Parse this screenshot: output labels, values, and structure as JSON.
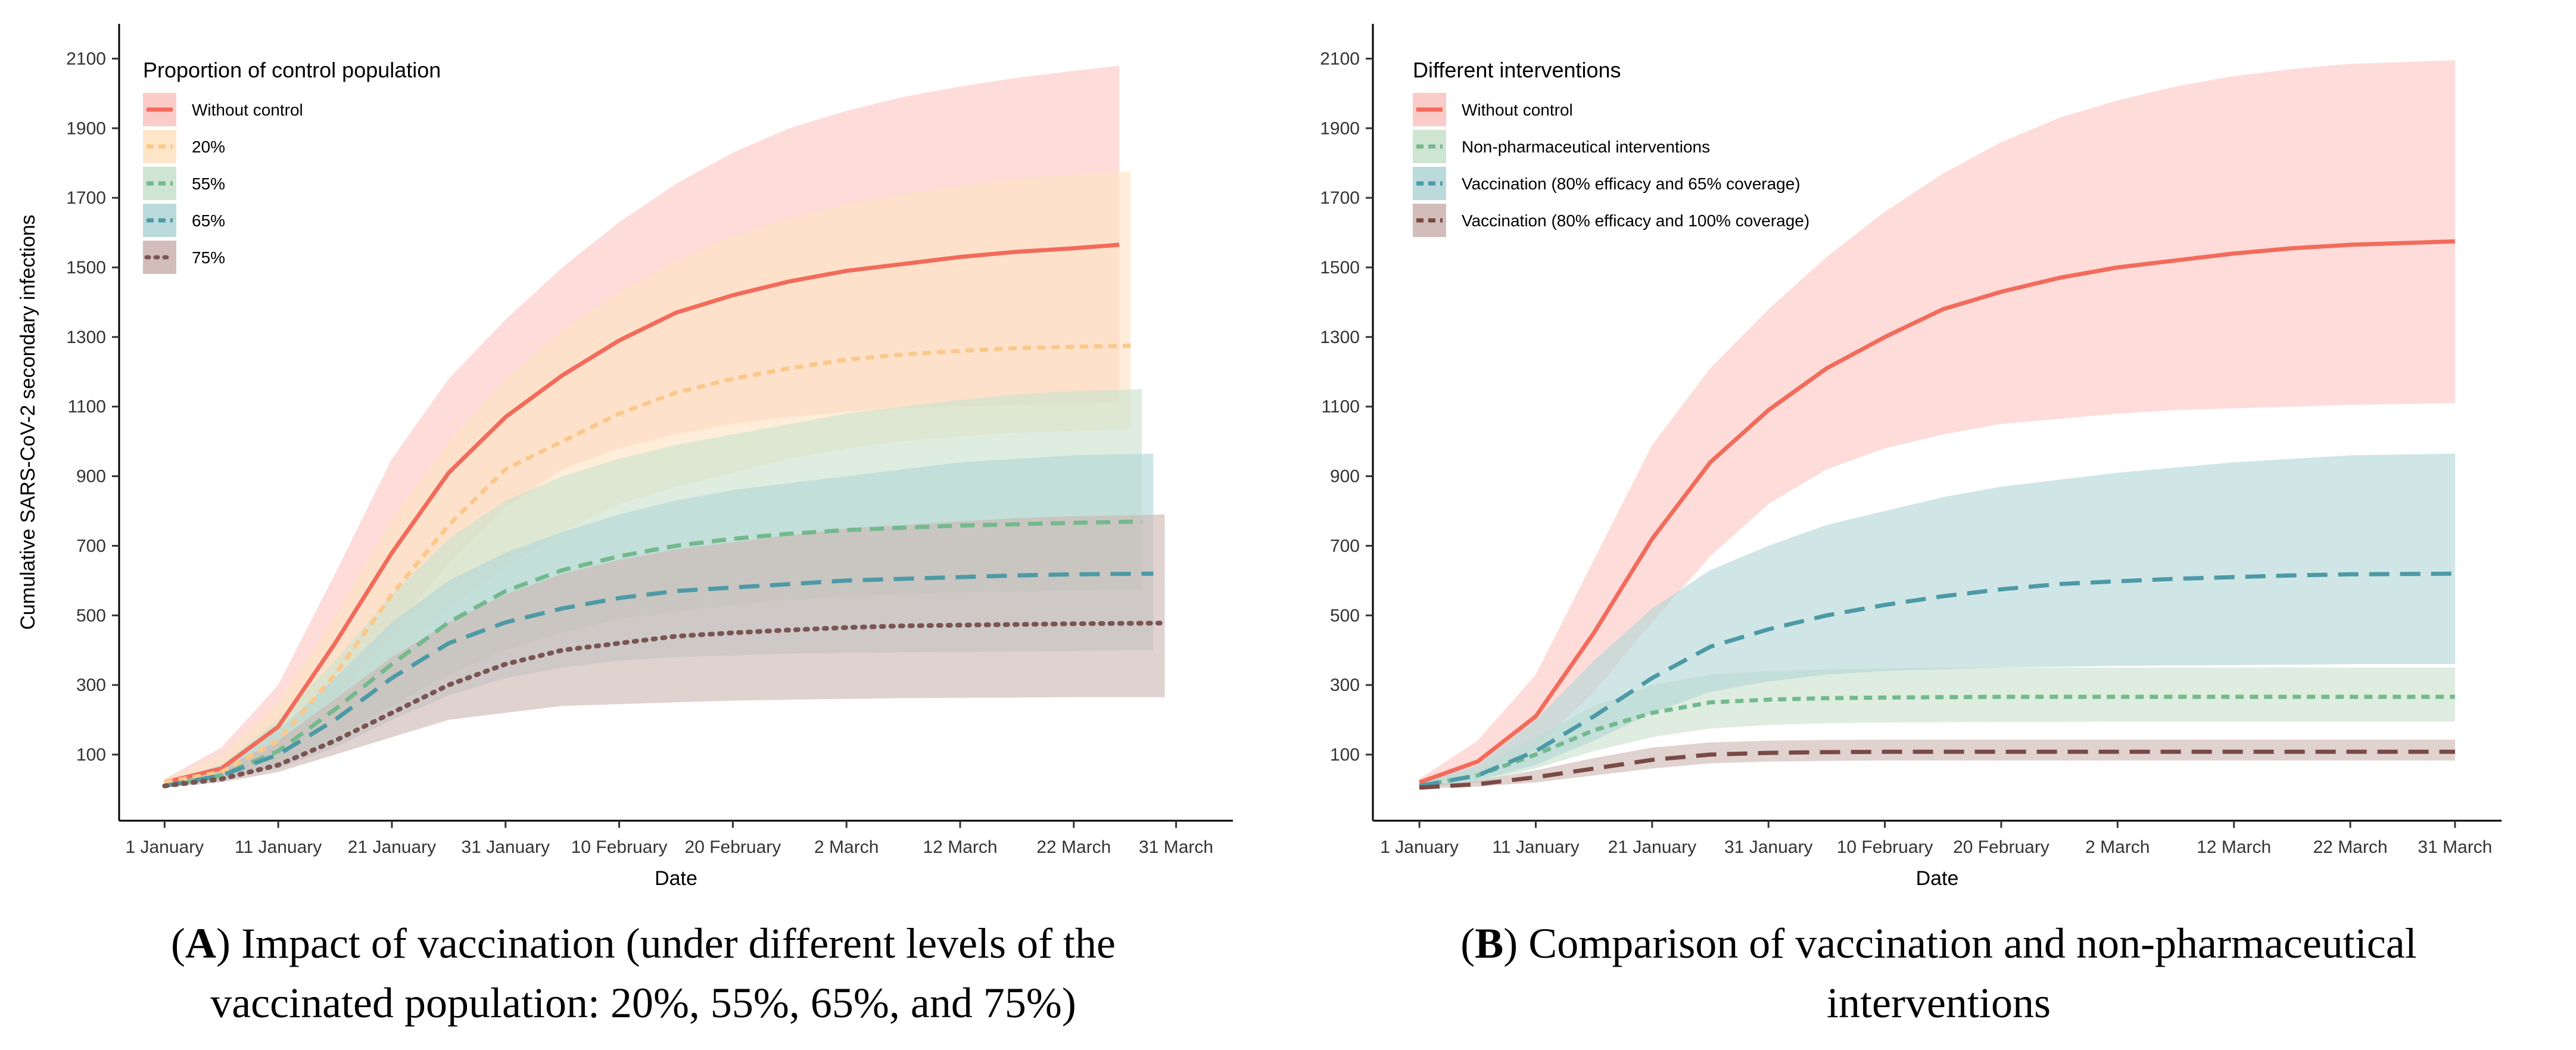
{
  "chart_data": [
    {
      "type": "line",
      "panel": "A",
      "caption_lines": [
        {
          "prefix": "(",
          "bold": "A",
          "rest": ") Impact of vaccination (under different levels of the"
        },
        {
          "prefix": "",
          "bold": "",
          "rest": "vaccinated population: 20%, 55%, 65%, and 75%)"
        }
      ],
      "xlabel": "Date",
      "ylabel": "Cumulative SARS-CoV-2 secondary infections",
      "xlim": [
        -4,
        94
      ],
      "ylim": [
        -90,
        2200
      ],
      "xticks": [
        0,
        10,
        20,
        30,
        40,
        50,
        60,
        70,
        80,
        89
      ],
      "xtick_labels": [
        "1 January",
        "11 January",
        "21 January",
        "31 January",
        "10 February",
        "20 February",
        "2 March",
        "12 March",
        "22 March",
        "31 March"
      ],
      "yticks": [
        100,
        300,
        500,
        700,
        900,
        1100,
        1300,
        1500,
        1700,
        1900,
        2100
      ],
      "ytick_labels": [
        "100",
        "300",
        "500",
        "700",
        "900",
        "1100",
        "1300",
        "1500",
        "1700",
        "1900",
        "2100"
      ],
      "legend_title": "Proportion of control population",
      "legend_position": "top-left",
      "series": [
        {
          "name": "Without control",
          "color": "#f26b5b",
          "band_color": "#fbc7c1",
          "dash": "solid",
          "end_x": 84,
          "x": [
            0,
            5,
            10,
            15,
            20,
            25,
            30,
            35,
            40,
            45,
            50,
            55,
            60,
            65,
            70,
            75,
            80,
            84
          ],
          "values": [
            20,
            60,
            180,
            420,
            680,
            910,
            1070,
            1190,
            1290,
            1370,
            1420,
            1460,
            1490,
            1510,
            1530,
            1545,
            1555,
            1565
          ],
          "lower": [
            10,
            30,
            100,
            260,
            450,
            650,
            810,
            920,
            980,
            1020,
            1050,
            1070,
            1085,
            1095,
            1100,
            1105,
            1108,
            1110
          ],
          "upper": [
            30,
            120,
            300,
            620,
            950,
            1180,
            1350,
            1500,
            1630,
            1740,
            1830,
            1900,
            1950,
            1990,
            2020,
            2045,
            2065,
            2080
          ]
        },
        {
          "name": "20%",
          "color": "#fbc88a",
          "band_color": "#fde3c2",
          "dash": "short",
          "end_x": 85,
          "x": [
            0,
            5,
            10,
            15,
            20,
            25,
            30,
            35,
            40,
            45,
            50,
            55,
            60,
            65,
            70,
            75,
            80,
            85
          ],
          "values": [
            20,
            50,
            140,
            330,
            560,
            760,
            920,
            1000,
            1080,
            1140,
            1180,
            1210,
            1235,
            1250,
            1260,
            1268,
            1272,
            1275
          ],
          "lower": [
            10,
            30,
            80,
            200,
            370,
            520,
            640,
            740,
            820,
            870,
            910,
            950,
            980,
            1000,
            1015,
            1025,
            1030,
            1035
          ],
          "upper": [
            30,
            100,
            250,
            500,
            780,
            1000,
            1180,
            1320,
            1430,
            1520,
            1590,
            1640,
            1680,
            1710,
            1735,
            1755,
            1768,
            1775
          ]
        },
        {
          "name": "55%",
          "color": "#74b98e",
          "band_color": "#c9e2cd",
          "dash": "medium",
          "end_x": 86,
          "x": [
            0,
            5,
            10,
            15,
            20,
            25,
            30,
            35,
            40,
            45,
            50,
            55,
            60,
            65,
            70,
            75,
            80,
            86
          ],
          "values": [
            10,
            40,
            110,
            230,
            360,
            480,
            570,
            630,
            670,
            700,
            720,
            735,
            745,
            752,
            758,
            762,
            766,
            770
          ],
          "lower": [
            5,
            25,
            70,
            150,
            240,
            330,
            400,
            450,
            490,
            510,
            530,
            545,
            555,
            560,
            565,
            570,
            572,
            575
          ],
          "upper": [
            20,
            70,
            200,
            370,
            560,
            720,
            830,
            900,
            950,
            990,
            1020,
            1050,
            1080,
            1100,
            1120,
            1135,
            1145,
            1150
          ]
        },
        {
          "name": "65%",
          "color": "#4d9aa6",
          "band_color": "#b3d6d7",
          "dash": "long",
          "end_x": 87,
          "x": [
            0,
            5,
            10,
            15,
            20,
            25,
            30,
            35,
            40,
            45,
            50,
            55,
            60,
            65,
            70,
            75,
            80,
            87
          ],
          "values": [
            10,
            40,
            100,
            200,
            320,
            420,
            480,
            520,
            550,
            570,
            580,
            590,
            600,
            605,
            610,
            615,
            618,
            620
          ],
          "lower": [
            5,
            25,
            60,
            120,
            200,
            270,
            320,
            350,
            370,
            380,
            385,
            390,
            392,
            394,
            395,
            396,
            398,
            400
          ],
          "upper": [
            20,
            70,
            170,
            320,
            480,
            600,
            680,
            740,
            790,
            830,
            860,
            880,
            900,
            920,
            940,
            950,
            960,
            965
          ]
        },
        {
          "name": "75%",
          "color": "#7a5553",
          "band_color": "#cdb6b2",
          "dash": "dotted",
          "end_x": 88,
          "x": [
            0,
            5,
            10,
            15,
            20,
            25,
            30,
            35,
            40,
            45,
            50,
            55,
            60,
            65,
            70,
            75,
            80,
            88
          ],
          "values": [
            10,
            30,
            70,
            140,
            220,
            300,
            360,
            400,
            420,
            440,
            450,
            458,
            465,
            470,
            472,
            474,
            476,
            478
          ],
          "lower": [
            5,
            20,
            50,
            100,
            150,
            200,
            220,
            240,
            245,
            250,
            255,
            258,
            260,
            262,
            263,
            264,
            265,
            265
          ],
          "upper": [
            20,
            60,
            140,
            260,
            380,
            480,
            560,
            620,
            660,
            690,
            710,
            730,
            750,
            760,
            770,
            780,
            785,
            790
          ]
        }
      ]
    },
    {
      "type": "line",
      "panel": "B",
      "caption_lines": [
        {
          "prefix": "(",
          "bold": "B",
          "rest": ") Comparison of vaccination and non-pharmaceutical"
        },
        {
          "prefix": "",
          "bold": "",
          "rest": "interventions"
        }
      ],
      "xlabel": "Date",
      "ylabel": "",
      "xlim": [
        -4,
        93
      ],
      "ylim": [
        -90,
        2200
      ],
      "xticks": [
        0,
        10,
        20,
        30,
        40,
        50,
        60,
        70,
        80,
        89
      ],
      "xtick_labels": [
        "1 January",
        "11 January",
        "21 January",
        "31 January",
        "10 February",
        "20 February",
        "2 March",
        "12 March",
        "22 March",
        "31 March"
      ],
      "yticks": [
        100,
        300,
        500,
        700,
        900,
        1100,
        1300,
        1500,
        1700,
        1900,
        2100
      ],
      "ytick_labels": [
        "100",
        "300",
        "500",
        "700",
        "900",
        "1100",
        "1300",
        "1500",
        "1700",
        "1900",
        "2100"
      ],
      "legend_title": "Different interventions",
      "legend_position": "top-left",
      "series": [
        {
          "name": "Without control",
          "color": "#f26b5b",
          "band_color": "#fbc7c1",
          "dash": "solid",
          "end_x": 89,
          "x": [
            0,
            5,
            10,
            15,
            20,
            25,
            30,
            35,
            40,
            45,
            50,
            55,
            60,
            65,
            70,
            75,
            80,
            89
          ],
          "values": [
            20,
            80,
            210,
            450,
            720,
            940,
            1090,
            1210,
            1300,
            1380,
            1430,
            1470,
            1500,
            1520,
            1540,
            1555,
            1565,
            1575
          ],
          "lower": [
            10,
            40,
            120,
            280,
            480,
            670,
            820,
            920,
            980,
            1020,
            1050,
            1065,
            1080,
            1090,
            1095,
            1100,
            1105,
            1110
          ],
          "upper": [
            30,
            140,
            330,
            660,
            990,
            1210,
            1380,
            1530,
            1660,
            1770,
            1860,
            1930,
            1980,
            2020,
            2050,
            2070,
            2085,
            2095
          ]
        },
        {
          "name": "Non-pharmaceutical interventions",
          "color": "#74b98e",
          "band_color": "#c9e2cd",
          "dash": "short",
          "end_x": 89,
          "x": [
            0,
            5,
            10,
            15,
            20,
            25,
            30,
            35,
            40,
            45,
            50,
            55,
            60,
            65,
            70,
            75,
            80,
            89
          ],
          "values": [
            10,
            40,
            100,
            170,
            220,
            250,
            258,
            262,
            264,
            265,
            266,
            266,
            266,
            266,
            266,
            266,
            266,
            266
          ],
          "lower": [
            5,
            20,
            60,
            110,
            150,
            175,
            185,
            190,
            192,
            193,
            194,
            194,
            195,
            195,
            195,
            195,
            195,
            195
          ],
          "upper": [
            20,
            60,
            150,
            240,
            300,
            330,
            340,
            345,
            348,
            350,
            350,
            350,
            350,
            350,
            350,
            350,
            350,
            350
          ]
        },
        {
          "name": "Vaccination (80% efficacy and 65% coverage)",
          "color": "#4d9aa6",
          "band_color": "#b3d6d7",
          "dash": "long",
          "end_x": 89,
          "x": [
            0,
            5,
            10,
            15,
            20,
            25,
            30,
            35,
            40,
            45,
            50,
            55,
            60,
            65,
            70,
            75,
            80,
            89
          ],
          "values": [
            10,
            40,
            110,
            210,
            320,
            410,
            460,
            500,
            530,
            555,
            575,
            590,
            598,
            605,
            610,
            615,
            618,
            620
          ],
          "lower": [
            5,
            25,
            70,
            140,
            220,
            280,
            310,
            330,
            340,
            345,
            350,
            352,
            355,
            356,
            357,
            358,
            360,
            360
          ],
          "upper": [
            20,
            70,
            200,
            370,
            520,
            630,
            700,
            760,
            800,
            840,
            870,
            890,
            910,
            925,
            940,
            950,
            960,
            965
          ]
        },
        {
          "name": "Vaccination (80% efficacy and 100% coverage)",
          "color": "#7a4a46",
          "band_color": "#cdb6b2",
          "dash": "long",
          "end_x": 89,
          "x": [
            0,
            5,
            10,
            15,
            20,
            25,
            30,
            35,
            40,
            45,
            50,
            55,
            60,
            65,
            70,
            75,
            80,
            89
          ],
          "values": [
            5,
            15,
            35,
            60,
            85,
            100,
            105,
            107,
            108,
            108,
            108,
            108,
            108,
            108,
            108,
            108,
            108,
            108
          ],
          "lower": [
            2,
            8,
            20,
            40,
            60,
            75,
            80,
            82,
            83,
            83,
            83,
            83,
            83,
            83,
            83,
            83,
            83,
            83
          ],
          "upper": [
            10,
            25,
            55,
            90,
            120,
            135,
            140,
            142,
            143,
            143,
            143,
            143,
            143,
            143,
            143,
            143,
            143,
            143
          ]
        }
      ]
    }
  ]
}
